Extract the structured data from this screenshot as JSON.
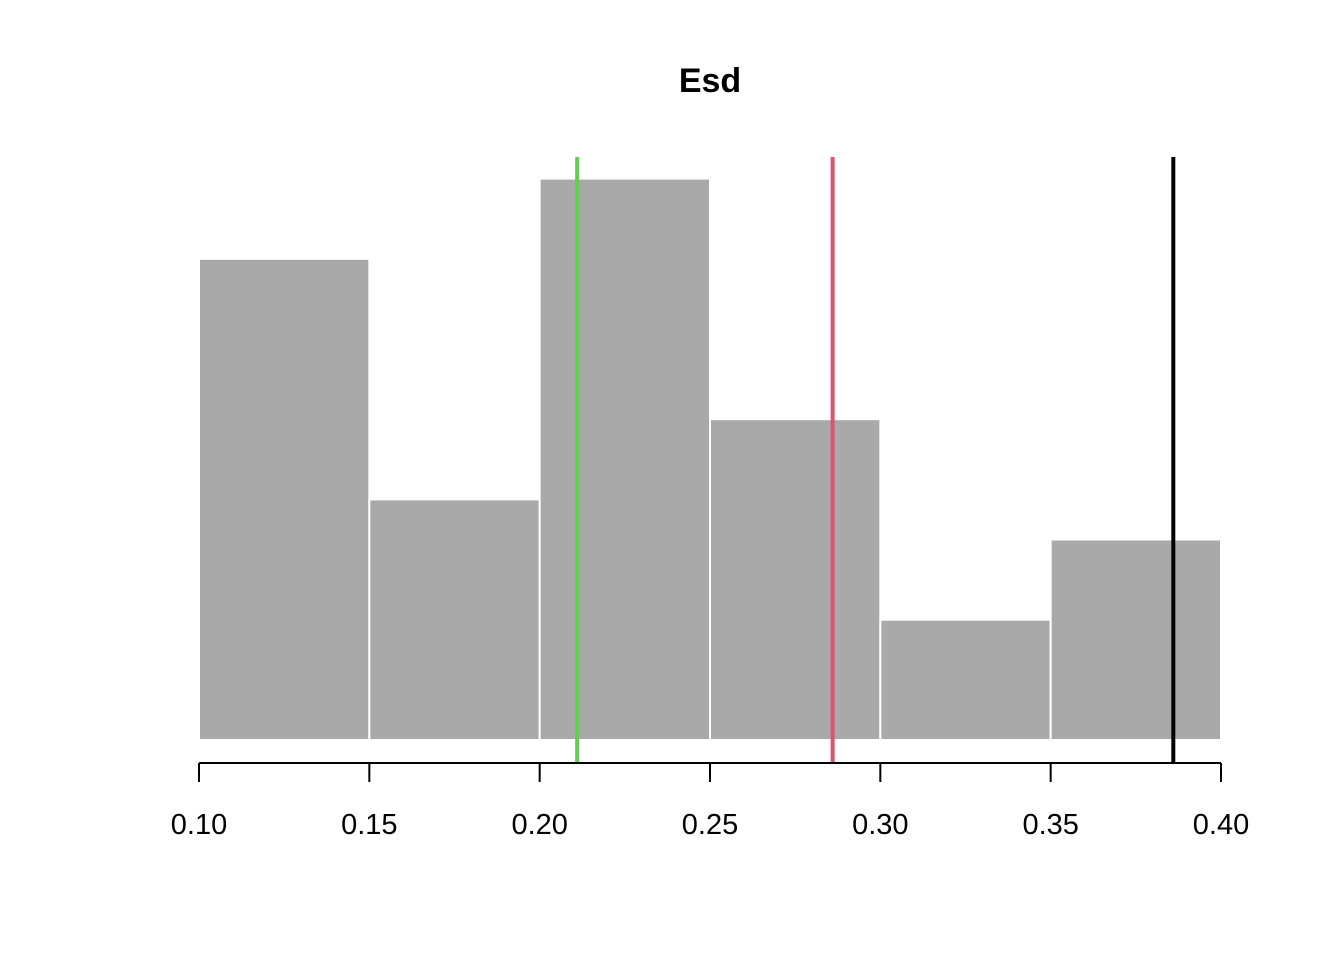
{
  "chart_data": {
    "type": "bar",
    "title": "Esd",
    "xlabel": "",
    "ylabel": "",
    "xlim": [
      0.1,
      0.4
    ],
    "ylim": [
      0,
      7
    ],
    "bins": [
      {
        "x0": 0.1,
        "x1": 0.15,
        "count": 6
      },
      {
        "x0": 0.15,
        "x1": 0.2,
        "count": 3
      },
      {
        "x0": 0.2,
        "x1": 0.25,
        "count": 7
      },
      {
        "x0": 0.25,
        "x1": 0.3,
        "count": 4
      },
      {
        "x0": 0.3,
        "x1": 0.35,
        "count": 1.5
      },
      {
        "x0": 0.35,
        "x1": 0.4,
        "count": 2.5
      }
    ],
    "x_ticks": [
      "0.10",
      "0.15",
      "0.20",
      "0.25",
      "0.30",
      "0.35",
      "0.40"
    ],
    "reference_lines": [
      {
        "x": 0.211,
        "color": "#61D04F"
      },
      {
        "x": 0.286,
        "color": "#DF536B"
      },
      {
        "x": 0.386,
        "color": "#000000"
      }
    ],
    "bar_color": "#A9A9A9",
    "grid": false,
    "legend": "none"
  }
}
